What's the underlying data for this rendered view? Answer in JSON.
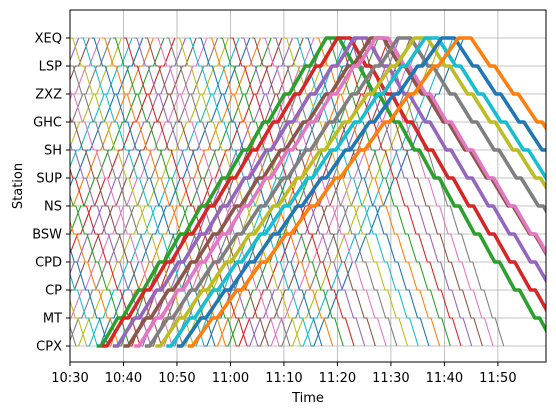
{
  "chart_data": {
    "type": "line",
    "xlabel": "Time",
    "ylabel": "Station",
    "grid": true,
    "x_range": [
      "10:30",
      "11:59"
    ],
    "x_ticks": [
      "10:30",
      "10:40",
      "10:50",
      "11:00",
      "11:10",
      "11:20",
      "11:30",
      "11:40",
      "11:50"
    ],
    "stations": [
      "CPX",
      "MT",
      "CP",
      "CPD",
      "BSW",
      "NS",
      "SUP",
      "SH",
      "GHC",
      "ZXZ",
      "LSP",
      "XEQ"
    ],
    "series_colors": [
      "#1f77b4",
      "#ff7f0e",
      "#2ca02c",
      "#d62728",
      "#9467bd",
      "#8c564b",
      "#e377c2",
      "#7f7f7f",
      "#bcbd22",
      "#17becf"
    ],
    "up_service": {
      "start": "10:35",
      "headway_min": 2,
      "count": 41,
      "segment_min": 2,
      "dwell_min": 0.6
    },
    "down_service": {
      "start": "10:30",
      "headway_min": 2,
      "count": 45,
      "segment_min": 1.6,
      "dwell_min": 0.5
    },
    "thick_series": [
      {
        "name": "",
        "start": "10:35",
        "segment_min": 3.0
      },
      {
        "name": "",
        "start": "10:36",
        "segment_min": 3.1
      },
      {
        "name": "",
        "start": "10:38",
        "segment_min": 3.2
      },
      {
        "name": "",
        "start": "10:40",
        "segment_min": 3.3
      },
      {
        "name": "",
        "start": "10:42",
        "segment_min": 3.2
      },
      {
        "name": "",
        "start": "10:44",
        "segment_min": 3.4
      },
      {
        "name": "",
        "start": "10:46",
        "segment_min": 3.5
      },
      {
        "name": "",
        "start": "10:48",
        "segment_min": 3.5
      },
      {
        "name": "",
        "start": "10:50",
        "segment_min": 3.6
      },
      {
        "name": "",
        "start": "10:52",
        "segment_min": 3.7
      }
    ]
  }
}
